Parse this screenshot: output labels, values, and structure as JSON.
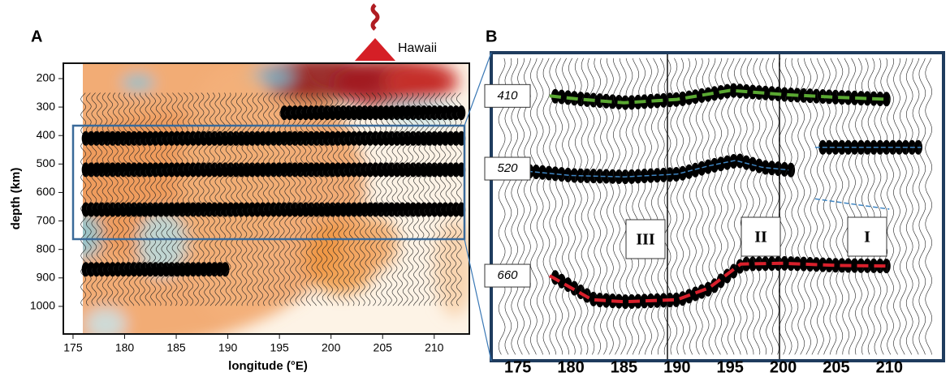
{
  "chart_data": [
    {
      "type": "section",
      "panel_label": "A",
      "annotation": "Hawaii",
      "xlabel": "longitude (°E)",
      "ylabel": "depth (km)",
      "xlim": [
        174.06,
        213.4
      ],
      "ylim": [
        1097,
        146
      ],
      "xticks": [
        175,
        180,
        185,
        190,
        195,
        200,
        205,
        210
      ],
      "yticks": [
        200,
        300,
        400,
        500,
        600,
        700,
        800,
        900,
        1000
      ]
    },
    {
      "type": "section",
      "panel_label": "B",
      "xlim": [
        172.5,
        215.1
      ],
      "ylim": [
        796,
        347
      ],
      "xticks": [
        175,
        180,
        185,
        190,
        195,
        200,
        205,
        210
      ],
      "region_labels": [
        "III",
        "II",
        "I"
      ],
      "series": [
        {
          "name": "410",
          "color": "#5aa832",
          "x": [
            178,
            181,
            185,
            190,
            195,
            200,
            205,
            210
          ],
          "values": [
            410,
            415,
            420,
            415,
            402,
            408,
            412,
            415
          ]
        },
        {
          "name": "520",
          "color": "#3f86c4",
          "x": [
            172.5,
            176,
            180,
            185,
            190,
            193,
            195.5,
            198,
            200.5,
            201,
            203,
            213,
            213.5,
            203,
            210
          ],
          "values": [
            516,
            520,
            526,
            528,
            524,
            512,
            504,
            514,
            518,
            null,
            485,
            485,
            null,
            560,
            575
          ]
        },
        {
          "name": "660",
          "color": "#d9202c",
          "x": [
            178,
            182,
            185,
            190,
            193,
            196,
            200,
            205,
            210
          ],
          "values": [
            672,
            707,
            710,
            707,
            690,
            655,
            654,
            657,
            658
          ]
        }
      ]
    }
  ]
}
